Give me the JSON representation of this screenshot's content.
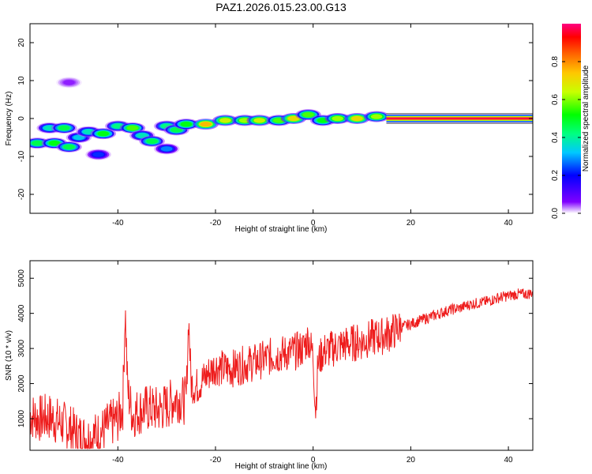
{
  "title": "PAZ1.2026.015.23.00.G13",
  "chart_data": [
    {
      "type": "heatmap",
      "xlabel": "Height of straight line (km)",
      "ylabel": "Frequency (Hz)",
      "xlim": [
        -58,
        45
      ],
      "ylim": [
        -25,
        25
      ],
      "xticks": [
        -40,
        -20,
        0,
        20,
        40
      ],
      "yticks": [
        -20,
        -10,
        0,
        10,
        20
      ],
      "colorbar": {
        "label": "Normalized spectral amplitude",
        "range": [
          0,
          1
        ],
        "ticks": [
          0.0,
          0.2,
          0.4,
          0.6,
          0.8
        ],
        "colormap": [
          "#ffffff",
          "#8000ff",
          "#0000ff",
          "#00c8ff",
          "#00ff80",
          "#00ff00",
          "#c8ff00",
          "#ffc800",
          "#ff6400",
          "#ff0000",
          "#ff0080"
        ]
      },
      "blobs": [
        {
          "x": -56.5,
          "y": -6.5,
          "amp": 0.5
        },
        {
          "x": -53,
          "y": -6.5,
          "amp": 0.55
        },
        {
          "x": -50,
          "y": -7.5,
          "amp": 0.5
        },
        {
          "x": -54,
          "y": -2.5,
          "amp": 0.4
        },
        {
          "x": -51,
          "y": -2.5,
          "amp": 0.5
        },
        {
          "x": -48,
          "y": -5,
          "amp": 0.35
        },
        {
          "x": -46,
          "y": -3.5,
          "amp": 0.4
        },
        {
          "x": -43,
          "y": -4,
          "amp": 0.55
        },
        {
          "x": -40,
          "y": -2,
          "amp": 0.45
        },
        {
          "x": -37,
          "y": -2.5,
          "amp": 0.6
        },
        {
          "x": -35,
          "y": -4.5,
          "amp": 0.4
        },
        {
          "x": -33,
          "y": -6,
          "amp": 0.5
        },
        {
          "x": -30,
          "y": -2,
          "amp": 0.45
        },
        {
          "x": -28,
          "y": -3,
          "amp": 0.5
        },
        {
          "x": -26,
          "y": -1.5,
          "amp": 0.55
        },
        {
          "x": -22,
          "y": -1.5,
          "amp": 0.8
        },
        {
          "x": -18,
          "y": -0.5,
          "amp": 0.7
        },
        {
          "x": -14,
          "y": -0.5,
          "amp": 0.65
        },
        {
          "x": -11,
          "y": -0.5,
          "amp": 0.7
        },
        {
          "x": -7,
          "y": -0.5,
          "amp": 0.6
        },
        {
          "x": -4,
          "y": 0,
          "amp": 0.75
        },
        {
          "x": -1,
          "y": 1,
          "amp": 0.6
        },
        {
          "x": 2,
          "y": -0.5,
          "amp": 0.55
        },
        {
          "x": 5,
          "y": 0,
          "amp": 0.65
        },
        {
          "x": 9,
          "y": 0,
          "amp": 0.75
        },
        {
          "x": 13,
          "y": 0.5,
          "amp": 0.65
        },
        {
          "x": -44,
          "y": -9.5,
          "amp": 0.25
        },
        {
          "x": -50,
          "y": 9.5,
          "amp": 0.1
        },
        {
          "x": -30,
          "y": -8,
          "amp": 0.3
        }
      ],
      "band": {
        "x_start": 15,
        "x_end": 45,
        "y": 0,
        "amp": 1.0
      }
    },
    {
      "type": "line",
      "xlabel": "Height of straight line (km)",
      "ylabel": "SNR (10 * v/v)",
      "xlim": [
        -58,
        45
      ],
      "ylim": [
        100,
        5500
      ],
      "xticks": [
        -40,
        -20,
        0,
        20,
        40
      ],
      "yticks": [
        1000,
        2000,
        3000,
        4000,
        5000
      ],
      "color": "#ee1c1c",
      "series": [
        {
          "name": "SNR",
          "x": [
            -58,
            -56,
            -54,
            -52,
            -50,
            -48,
            -46,
            -44,
            -42,
            -40,
            -39,
            -38.5,
            -38,
            -37,
            -36,
            -34,
            -32,
            -30,
            -28,
            -26,
            -25.5,
            -25,
            -24,
            -22,
            -20,
            -18,
            -16,
            -14,
            -12,
            -10,
            -8,
            -6,
            -4,
            -2,
            -1,
            0,
            0.5,
            1,
            2,
            4,
            6,
            8,
            10,
            12,
            14,
            16,
            18,
            20,
            22,
            24,
            26,
            28,
            30,
            32,
            34,
            36,
            38,
            40,
            42,
            44,
            45
          ],
          "y": [
            1100,
            1000,
            1050,
            900,
            750,
            500,
            450,
            550,
            800,
            1000,
            1300,
            4200,
            1800,
            1100,
            1200,
            1300,
            1250,
            1350,
            1600,
            1500,
            3900,
            2000,
            1900,
            2200,
            2500,
            2400,
            2450,
            2550,
            2600,
            2700,
            2800,
            2850,
            2900,
            3000,
            3300,
            2800,
            1200,
            2600,
            2900,
            3000,
            3100,
            3150,
            3200,
            3300,
            3350,
            3450,
            3600,
            3700,
            3800,
            3900,
            4000,
            4100,
            4150,
            4250,
            4300,
            4350,
            4450,
            4500,
            4550,
            4550,
            4600
          ]
        }
      ]
    }
  ]
}
